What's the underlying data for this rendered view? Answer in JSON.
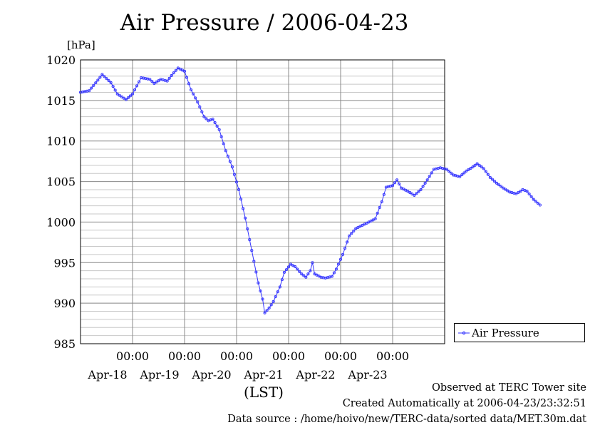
{
  "chart_data": {
    "type": "line",
    "title": "Air Pressure / 2006-04-23",
    "ylabel": "[hPa]",
    "xlabel": "(LST)",
    "ylim": [
      985,
      1020
    ],
    "yticks": [
      1020,
      1015,
      1010,
      1005,
      1000,
      995,
      990,
      985
    ],
    "xlim": [
      "2006-04-17 00:00",
      "2006-04-23 24:00"
    ],
    "x_time_ticks": [
      {
        "time": "00:00",
        "date": "Apr-18"
      },
      {
        "time": "00:00",
        "date": "Apr-19"
      },
      {
        "time": "00:00",
        "date": "Apr-20"
      },
      {
        "time": "00:00",
        "date": "Apr-21"
      },
      {
        "time": "00:00",
        "date": "Apr-22"
      },
      {
        "time": "00:00",
        "date": "Apr-23"
      }
    ],
    "grid": true,
    "legend_position": "right",
    "series": [
      {
        "name": "Air Pressure",
        "color": "#3333ff",
        "sampling": "hourly",
        "keyframes": [
          [
            "04-17 00:00",
            1016.0
          ],
          [
            "04-17 04:00",
            1016.2
          ],
          [
            "04-17 08:00",
            1017.5
          ],
          [
            "04-17 10:00",
            1018.2
          ],
          [
            "04-17 14:00",
            1017.2
          ],
          [
            "04-17 17:00",
            1015.8
          ],
          [
            "04-17 21:00",
            1015.1
          ],
          [
            "04-18 00:00",
            1015.8
          ],
          [
            "04-18 04:00",
            1017.8
          ],
          [
            "04-18 08:00",
            1017.6
          ],
          [
            "04-18 10:00",
            1017.1
          ],
          [
            "04-18 13:00",
            1017.6
          ],
          [
            "04-18 16:00",
            1017.4
          ],
          [
            "04-18 19:00",
            1018.4
          ],
          [
            "04-18 21:00",
            1019.0
          ],
          [
            "04-19 00:00",
            1018.6
          ],
          [
            "04-19 03:00",
            1016.3
          ],
          [
            "04-19 06:00",
            1014.8
          ],
          [
            "04-19 09:00",
            1013.0
          ],
          [
            "04-19 11:00",
            1012.5
          ],
          [
            "04-19 13:00",
            1012.7
          ],
          [
            "04-19 16:00",
            1011.4
          ],
          [
            "04-19 19:00",
            1008.8
          ],
          [
            "04-19 22:00",
            1006.8
          ],
          [
            "04-20 01:00",
            1004.0
          ],
          [
            "04-20 04:00",
            1000.5
          ],
          [
            "04-20 07:00",
            996.5
          ],
          [
            "04-20 10:00",
            992.5
          ],
          [
            "04-20 12:00",
            990.5
          ],
          [
            "04-20 13:00",
            988.8
          ],
          [
            "04-20 15:00",
            989.4
          ],
          [
            "04-20 17:00",
            990.2
          ],
          [
            "04-20 20:00",
            992.0
          ],
          [
            "04-20 22:00",
            993.8
          ],
          [
            "04-21 01:00",
            994.8
          ],
          [
            "04-21 03:00",
            994.5
          ],
          [
            "04-21 06:00",
            993.6
          ],
          [
            "04-21 08:00",
            993.2
          ],
          [
            "04-21 10:00",
            994.0
          ],
          [
            "04-21 11:00",
            995.0
          ],
          [
            "04-21 12:00",
            993.6
          ],
          [
            "04-21 15:00",
            993.2
          ],
          [
            "04-21 17:00",
            993.1
          ],
          [
            "04-21 20:00",
            993.3
          ],
          [
            "04-21 22:00",
            994.2
          ],
          [
            "04-22 01:00",
            996.0
          ],
          [
            "04-22 04:00",
            998.3
          ],
          [
            "04-22 07:00",
            999.2
          ],
          [
            "04-22 10:00",
            999.6
          ],
          [
            "04-22 13:00",
            1000.0
          ],
          [
            "04-22 16:00",
            1000.4
          ],
          [
            "04-22 19:00",
            1002.5
          ],
          [
            "04-22 21:00",
            1004.3
          ],
          [
            "04-23 00:00",
            1004.5
          ],
          [
            "04-23 02:00",
            1005.2
          ],
          [
            "04-23 04:00",
            1004.2
          ],
          [
            "04-23 07:00",
            1003.8
          ],
          [
            "04-23 10:00",
            1003.3
          ],
          [
            "04-23 13:00",
            1004.0
          ],
          [
            "04-23 16:00",
            1005.2
          ],
          [
            "04-23 19:00",
            1006.5
          ],
          [
            "04-23 22:00",
            1006.7
          ],
          [
            "04-24 01:00",
            1006.5
          ],
          [
            "04-24 04:00",
            1005.8
          ],
          [
            "04-24 07:00",
            1005.6
          ],
          [
            "04-24 10:00",
            1006.3
          ],
          [
            "04-24 13:00",
            1006.8
          ],
          [
            "04-24 15:00",
            1007.2
          ],
          [
            "04-24 18:00",
            1006.6
          ],
          [
            "04-24 21:00",
            1005.5
          ],
          [
            "04-25 00:00",
            1004.8
          ],
          [
            "04-25 03:00",
            1004.2
          ],
          [
            "04-25 06:00",
            1003.7
          ],
          [
            "04-25 09:00",
            1003.5
          ],
          [
            "04-25 11:00",
            1003.8
          ],
          [
            "04-25 12:00",
            1004.0
          ],
          [
            "04-25 14:00",
            1003.8
          ],
          [
            "04-25 17:00",
            1002.8
          ],
          [
            "04-25 20:00",
            1002.1
          ]
        ]
      }
    ]
  },
  "footer": {
    "line1": "Observed at TERC Tower site",
    "line2": "Created Automatically at 2006-04-23/23:32:51",
    "line3": "Data source : /home/hoivo/new/TERC-data/sorted  data/MET.30m.dat"
  }
}
